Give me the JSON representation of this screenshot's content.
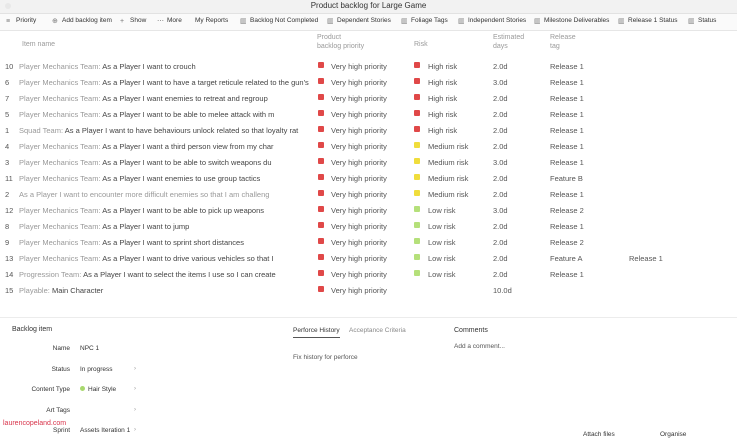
{
  "window": {
    "title": "Product backlog for Large Game"
  },
  "toolbar": {
    "items": [
      {
        "label": "Priority",
        "icon": "priority-icon"
      },
      {
        "label": "Add backlog item",
        "icon": "add-icon"
      },
      {
        "label": "Show",
        "icon": "plus-icon"
      },
      {
        "label": "More",
        "icon": "more-icon"
      },
      {
        "label": "My Reports",
        "icon": "reports-icon"
      },
      {
        "label": "Backlog Not Completed",
        "icon": "bar-chart-icon"
      },
      {
        "label": "Dependent Stories",
        "icon": "bar-chart-icon"
      },
      {
        "label": "Foliage Tags",
        "icon": "bar-chart-icon"
      },
      {
        "label": "Independent Stories",
        "icon": "bar-chart-icon"
      },
      {
        "label": "Milestone Deliverables",
        "icon": "bar-chart-icon"
      },
      {
        "label": "Release 1 Status",
        "icon": "bar-chart-icon"
      },
      {
        "label": "Status",
        "icon": "bar-chart-icon"
      }
    ]
  },
  "columns": {
    "item_name": "Item name",
    "product_priority_line1": "Product",
    "product_priority_line2": "backlog priority",
    "risk": "Risk",
    "estimated_line1": "Estimated",
    "estimated_line2": "days",
    "release_line1": "Release",
    "release_line2": "tag"
  },
  "colors": {
    "high": "#e04848",
    "medium": "#f0dd3c",
    "low": "#b5e07a",
    "accent": "#3aa0d8"
  },
  "rows": [
    {
      "num": "10",
      "team": "Player Mechanics Team:",
      "story": "As a Player I want to crouch",
      "priority": "Very high priority",
      "risk": "High risk",
      "risk_level": "high",
      "est": "2.0d",
      "release": "Release 1",
      "extra": ""
    },
    {
      "num": "6",
      "team": "Player Mechanics Team:",
      "story": "As a Player I want to have a target reticule related to the gun's spre",
      "priority": "Very high priority",
      "risk": "High risk",
      "risk_level": "high",
      "est": "3.0d",
      "release": "Release 1",
      "extra": ""
    },
    {
      "num": "7",
      "team": "Player Mechanics Team:",
      "story": "As a Player I want enemies to retreat and regroup",
      "priority": "Very high priority",
      "risk": "High risk",
      "risk_level": "high",
      "est": "2.0d",
      "release": "Release 1",
      "extra": ""
    },
    {
      "num": "5",
      "team": "Player Mechanics Team:",
      "story": "As a Player I want to be able to melee attack with m",
      "priority": "Very high priority",
      "risk": "High risk",
      "risk_level": "high",
      "est": "2.0d",
      "release": "Release 1",
      "extra": ""
    },
    {
      "num": "1",
      "team": "Squad Team:",
      "story": "As a Player I want to have behaviours unlock related so that loyalty rat",
      "priority": "Very high priority",
      "risk": "High risk",
      "risk_level": "high",
      "est": "2.0d",
      "release": "Release 1",
      "extra": ""
    },
    {
      "num": "4",
      "team": "Player Mechanics Team:",
      "story": "As a Player I want a third person view from my char",
      "priority": "Very high priority",
      "risk": "Medium risk",
      "risk_level": "medium",
      "est": "2.0d",
      "release": "Release 1",
      "extra": ""
    },
    {
      "num": "3",
      "team": "Player Mechanics Team:",
      "story": "As a Player I want to be able to switch weapons du",
      "priority": "Very high priority",
      "risk": "Medium risk",
      "risk_level": "medium",
      "est": "3.0d",
      "release": "Release 1",
      "extra": ""
    },
    {
      "num": "11",
      "team": "Player Mechanics Team:",
      "story": "As a Player I want enemies to use group tactics",
      "priority": "Very high priority",
      "risk": "Medium risk",
      "risk_level": "medium",
      "est": "2.0d",
      "release": "Feature B",
      "extra": ""
    },
    {
      "num": "2",
      "team": "",
      "story": "As a Player I want to encounter more difficult enemies so that I am challeng",
      "priority": "Very high priority",
      "risk": "Medium risk",
      "risk_level": "medium",
      "est": "2.0d",
      "release": "Release 1",
      "extra": ""
    },
    {
      "num": "12",
      "team": "Player Mechanics Team:",
      "story": "As a Player I want to be able to pick up weapons",
      "priority": "Very high priority",
      "risk": "Low risk",
      "risk_level": "low",
      "est": "3.0d",
      "release": "Release 2",
      "extra": ""
    },
    {
      "num": "8",
      "team": "Player Mechanics Team:",
      "story": "As a Player I want to jump",
      "priority": "Very high priority",
      "risk": "Low risk",
      "risk_level": "low",
      "est": "2.0d",
      "release": "Release 1",
      "extra": ""
    },
    {
      "num": "9",
      "team": "Player Mechanics Team:",
      "story": "As a Player I want to sprint short distances",
      "priority": "Very high priority",
      "risk": "Low risk",
      "risk_level": "low",
      "est": "2.0d",
      "release": "Release 2",
      "extra": ""
    },
    {
      "num": "13",
      "team": "Player Mechanics Team:",
      "story": "As a Player I want to drive various vehicles so that I",
      "priority": "Very high priority",
      "risk": "Low risk",
      "risk_level": "low",
      "est": "2.0d",
      "release": "Feature A",
      "extra": "Release 1"
    },
    {
      "num": "14",
      "team": "Progression Team:",
      "story": "As a Player I want to select the items I use so I can create",
      "priority": "Very high priority",
      "risk": "Low risk",
      "risk_level": "low",
      "est": "2.0d",
      "release": "Release 1",
      "extra": ""
    },
    {
      "num": "15",
      "team": "Playable:",
      "story": "Main Character",
      "priority": "Very high priority",
      "risk": "",
      "risk_level": "",
      "est": "10.0d",
      "release": "",
      "extra": ""
    }
  ],
  "detail": {
    "title": "Backlog item",
    "fields": [
      {
        "label": "Name",
        "value": "NPC 1",
        "dot": ""
      },
      {
        "label": "Status",
        "value": "In progress",
        "dot": ""
      },
      {
        "label": "Content Type",
        "value": "Hair Style",
        "dot": "#a8d86e"
      },
      {
        "label": "Art Tags",
        "value": "",
        "dot": ""
      },
      {
        "label": "Sprint",
        "value": "Assets Iteration 1",
        "dot": ""
      }
    ]
  },
  "tabs": {
    "history": "Perforce History",
    "acceptance": "Acceptance Criteria"
  },
  "history_text": "Fix history for perforce",
  "comments": {
    "title": "Comments",
    "placeholder": "Add a comment..."
  },
  "footer": {
    "attach": "Attach files",
    "organise": "Organise"
  },
  "watermark": "laurencopeland.com"
}
